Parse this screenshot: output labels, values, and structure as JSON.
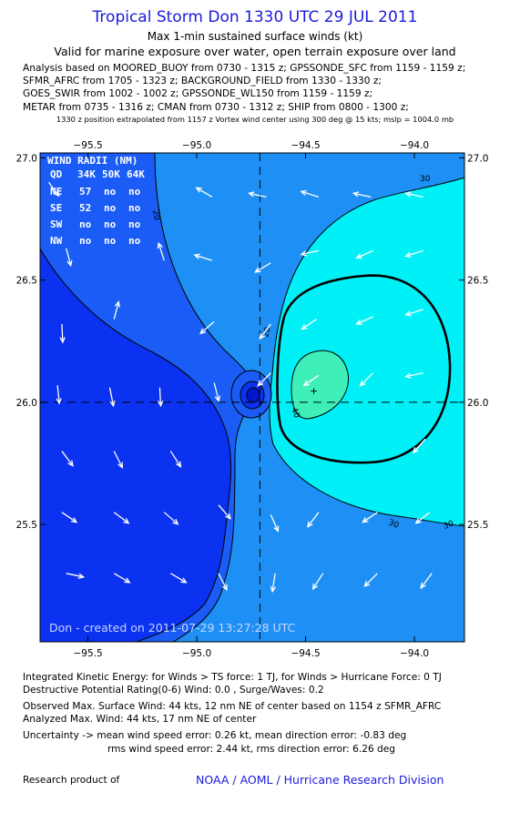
{
  "header": {
    "title": "Tropical Storm Don 1330 UTC 29 JUL 2011",
    "subtitle": "Max 1-min sustained surface winds (kt)",
    "valid": "Valid for marine exposure over water, open terrain exposure over land"
  },
  "analysis": {
    "lines": [
      "Analysis based on MOORED_BUOY from 0730 - 1315 z; GPSSONDE_SFC from 1159 - 1159 z;",
      "SFMR_AFRC from 1705 - 1323 z; BACKGROUND_FIELD from 1330 - 1330 z;",
      "GOES_SWIR from 1002 - 1002 z; GPSSONDE_WL150 from 1159 - 1159 z;",
      "METAR from 0735 - 1316 z; CMAN from 0730 - 1312 z; SHIP from 0800 - 1300 z;"
    ],
    "note": "1330 z position extrapolated from 1157 z Vortex wind center using 300 deg @ 15 kts; mslp = 1004.0 mb"
  },
  "map": {
    "lon_range": [
      -95.72,
      -93.77
    ],
    "lat_range": [
      25.02,
      27.02
    ],
    "lon_ticks": [
      -95.5,
      -95.0,
      -94.5,
      -94.0
    ],
    "lon_tick_labels": [
      "−95.5",
      "−95.0",
      "−94.5",
      "−94.0"
    ],
    "lat_ticks": [
      25.5,
      26.0,
      26.5,
      27.0
    ],
    "lat_tick_labels": [
      "25.5",
      "26.0",
      "26.5",
      "27.0"
    ],
    "center": {
      "lon": -94.71,
      "lat": 26.0
    },
    "contour_labels": [
      "20",
      "30",
      "40",
      "30",
      "30",
      "20"
    ],
    "wind_radii": {
      "title": "WIND RADII (NM)",
      "header": [
        "QD",
        "34K",
        "50K",
        "64K"
      ],
      "rows": [
        [
          "NE",
          "57",
          "no",
          "no"
        ],
        [
          "SE",
          "52",
          "no",
          "no"
        ],
        [
          "SW",
          "no",
          "no",
          "no"
        ],
        [
          "NW",
          "no",
          "no",
          "no"
        ]
      ]
    },
    "credit": "Don - created on 2011-07-29 13:27:28 UTC",
    "colors": {
      "band_0_10": "#0a32f0",
      "band_10_20": "#1a5cf5",
      "band_20_30": "#1e90f5",
      "band_30_40": "#00f0f8",
      "band_40_50": "#3ef0b8",
      "arrow": "#ffffff"
    },
    "vectors": [
      {
        "lon": -95.68,
        "lat": 26.9,
        "u": 0.55,
        "v": -0.75
      },
      {
        "lon": -95.6,
        "lat": 26.63,
        "u": 0.25,
        "v": -0.95
      },
      {
        "lon": -95.62,
        "lat": 26.32,
        "u": 0.05,
        "v": -1.0
      },
      {
        "lon": -95.64,
        "lat": 26.07,
        "u": 0.1,
        "v": -1.0
      },
      {
        "lon": -95.62,
        "lat": 25.8,
        "u": 0.6,
        "v": -0.8
      },
      {
        "lon": -95.62,
        "lat": 25.55,
        "u": 0.8,
        "v": -0.55
      },
      {
        "lon": -95.6,
        "lat": 25.3,
        "u": 0.95,
        "v": -0.2
      },
      {
        "lon": -95.38,
        "lat": 26.34,
        "u": 0.25,
        "v": 0.95
      },
      {
        "lon": -95.4,
        "lat": 26.06,
        "u": 0.2,
        "v": -1.0
      },
      {
        "lon": -95.38,
        "lat": 25.8,
        "u": 0.45,
        "v": -0.9
      },
      {
        "lon": -95.38,
        "lat": 25.55,
        "u": 0.8,
        "v": -0.6
      },
      {
        "lon": -95.38,
        "lat": 25.3,
        "u": 0.85,
        "v": -0.5
      },
      {
        "lon": -95.15,
        "lat": 26.58,
        "u": -0.3,
        "v": 0.95
      },
      {
        "lon": -95.17,
        "lat": 26.06,
        "u": 0.05,
        "v": -1.0
      },
      {
        "lon": -95.12,
        "lat": 25.8,
        "u": 0.55,
        "v": -0.85
      },
      {
        "lon": -95.15,
        "lat": 25.55,
        "u": 0.75,
        "v": -0.65
      },
      {
        "lon": -95.12,
        "lat": 25.3,
        "u": 0.85,
        "v": -0.5
      },
      {
        "lon": -94.93,
        "lat": 26.84,
        "u": -0.85,
        "v": 0.5
      },
      {
        "lon": -94.93,
        "lat": 26.58,
        "u": -0.95,
        "v": 0.3
      },
      {
        "lon": -94.92,
        "lat": 26.33,
        "u": -0.75,
        "v": -0.65
      },
      {
        "lon": -94.92,
        "lat": 26.08,
        "u": 0.25,
        "v": -1.0
      },
      {
        "lon": -94.9,
        "lat": 25.58,
        "u": 0.65,
        "v": -0.75
      },
      {
        "lon": -94.9,
        "lat": 25.3,
        "u": 0.45,
        "v": -0.9
      },
      {
        "lon": -94.68,
        "lat": 26.84,
        "u": -0.95,
        "v": 0.2
      },
      {
        "lon": -94.66,
        "lat": 26.57,
        "u": -0.85,
        "v": -0.5
      },
      {
        "lon": -94.66,
        "lat": 26.32,
        "u": -0.6,
        "v": -0.8
      },
      {
        "lon": -94.66,
        "lat": 26.12,
        "u": -0.7,
        "v": -0.7
      },
      {
        "lon": -94.66,
        "lat": 25.54,
        "u": 0.4,
        "v": -0.9
      },
      {
        "lon": -94.64,
        "lat": 25.3,
        "u": -0.15,
        "v": -1.0
      },
      {
        "lon": -94.44,
        "lat": 26.84,
        "u": -0.95,
        "v": 0.3
      },
      {
        "lon": -94.44,
        "lat": 26.62,
        "u": -0.95,
        "v": -0.2
      },
      {
        "lon": -94.45,
        "lat": 26.34,
        "u": -0.8,
        "v": -0.55
      },
      {
        "lon": -94.44,
        "lat": 26.11,
        "u": -0.8,
        "v": -0.55
      },
      {
        "lon": -94.44,
        "lat": 25.55,
        "u": -0.6,
        "v": -0.8
      },
      {
        "lon": -94.42,
        "lat": 25.3,
        "u": -0.55,
        "v": -0.85
      },
      {
        "lon": -94.2,
        "lat": 26.84,
        "u": -0.95,
        "v": 0.2
      },
      {
        "lon": -94.19,
        "lat": 26.62,
        "u": -0.9,
        "v": -0.4
      },
      {
        "lon": -94.19,
        "lat": 26.35,
        "u": -0.9,
        "v": -0.4
      },
      {
        "lon": -94.19,
        "lat": 26.12,
        "u": -0.7,
        "v": -0.7
      },
      {
        "lon": -94.17,
        "lat": 25.55,
        "u": -0.8,
        "v": -0.55
      },
      {
        "lon": -94.17,
        "lat": 25.3,
        "u": -0.7,
        "v": -0.7
      },
      {
        "lon": -93.96,
        "lat": 26.84,
        "u": -0.95,
        "v": 0.2
      },
      {
        "lon": -93.96,
        "lat": 26.62,
        "u": -0.95,
        "v": -0.3
      },
      {
        "lon": -93.96,
        "lat": 26.38,
        "u": -0.95,
        "v": -0.3
      },
      {
        "lon": -93.96,
        "lat": 26.12,
        "u": -0.95,
        "v": -0.2
      },
      {
        "lon": -93.95,
        "lat": 25.85,
        "u": -0.65,
        "v": -0.75
      },
      {
        "lon": -93.93,
        "lat": 25.55,
        "u": -0.75,
        "v": -0.6
      },
      {
        "lon": -93.92,
        "lat": 25.3,
        "u": -0.6,
        "v": -0.8
      }
    ]
  },
  "footer": {
    "ike": "Integrated Kinetic Energy:  for Winds > TS force: 1 TJ,  for Winds > Hurricane Force: 0 TJ",
    "dpr": "Destructive Potential Rating(0-6)   Wind: 0.0 , Surge/Waves: 0.2",
    "observed": "Observed Max. Surface Wind: 44 kts, 12 nm NE of center based on 1154 z SFMR_AFRC",
    "analyzed": "Analyzed Max. Wind: 44 kts, 17 nm NE of center",
    "uncertainty": "Uncertainty -> mean wind speed error: 0.26 kt,   mean direction error:  -0.83 deg",
    "rms": "rms wind speed error: 2.44 kt,   rms direction error: 6.26 deg",
    "research": "Research product of",
    "org": "NOAA / AOML / Hurricane Research Division"
  }
}
